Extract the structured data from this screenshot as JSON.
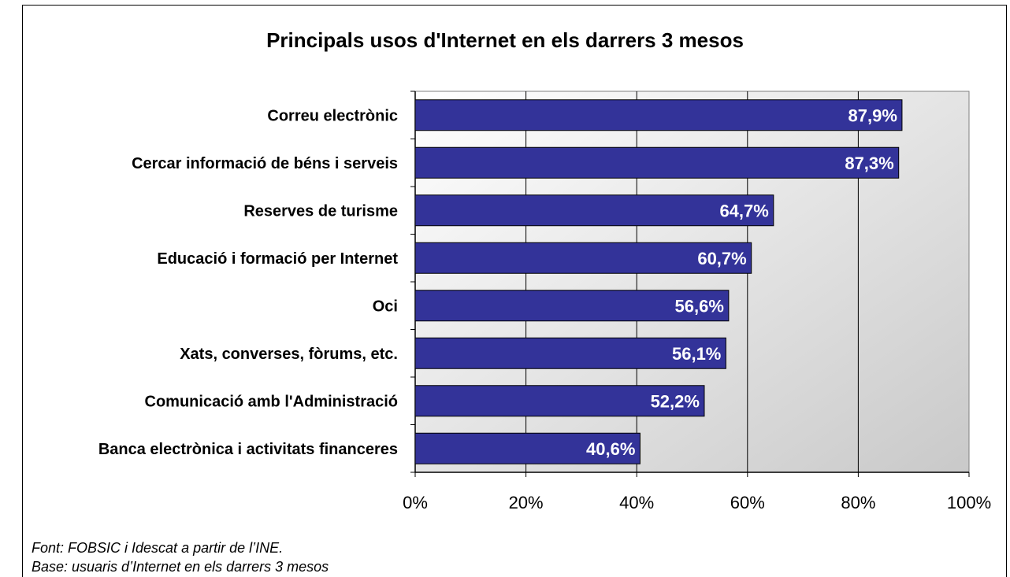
{
  "chart_data": {
    "type": "bar",
    "orientation": "horizontal",
    "title": "Principals usos d'Internet en els darrers 3 mesos",
    "categories": [
      "Correu electrònic",
      "Cercar informació de béns i serveis",
      "Reserves de turisme",
      "Educació i formació per Internet",
      "Oci",
      "Xats, converses, fòrums, etc.",
      "Comunicació amb l'Administració",
      "Banca electrònica i activitats financeres"
    ],
    "values": [
      87.9,
      87.3,
      64.7,
      60.7,
      56.6,
      56.1,
      52.2,
      40.6
    ],
    "value_labels": [
      "87,9%",
      "87,3%",
      "64,7%",
      "60,7%",
      "56,6%",
      "56,1%",
      "52,2%",
      "40,6%"
    ],
    "xlim": [
      0,
      100
    ],
    "x_ticks": [
      "0%",
      "20%",
      "40%",
      "60%",
      "80%",
      "100%"
    ],
    "xlabel": "",
    "ylabel": "",
    "grid": true,
    "bar_color": "#333399",
    "legend": "none"
  },
  "notes": {
    "source": "Font: FOBSIC i Idescat a partir de l’INE.",
    "base": "Base: usuaris d’Internet en els darrers 3 mesos"
  }
}
